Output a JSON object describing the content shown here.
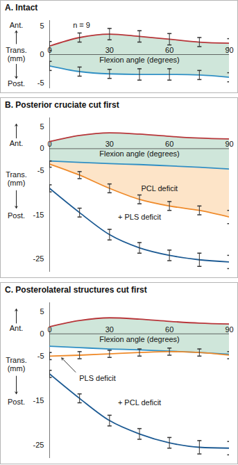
{
  "chart_data": [
    {
      "type": "line",
      "title": "A. Intact",
      "xlabel": "Flexion angle (degrees)",
      "ylabel": "Trans. (mm)",
      "ylabel_positive": "Ant.",
      "ylabel_negative": "Post.",
      "x": [
        0,
        15,
        30,
        45,
        60,
        75,
        90
      ],
      "xlim": [
        0,
        90
      ],
      "xticks": [
        0,
        30,
        60,
        90
      ],
      "ylim": [
        -6,
        6
      ],
      "yticks": [
        5,
        0,
        -5
      ],
      "annotations": [
        "n = 9"
      ],
      "series": [
        {
          "type": "area",
          "color": "#cfe6da",
          "values": [
            1.5,
            3,
            3.6,
            3.2,
            2.7,
            2.2,
            2.0
          ],
          "lower": [
            -2,
            -3,
            -3.4,
            -3.5,
            -3.5,
            -3.6,
            -4
          ]
        },
        {
          "color": "#b8363a",
          "values": [
            1.5,
            3,
            3.6,
            3.2,
            2.7,
            2.2,
            2.0
          ],
          "errors": [
            0.8,
            0.8,
            1,
            1,
            1,
            0.8,
            0.8
          ]
        },
        {
          "color": "#2f8fc4",
          "values": [
            -2,
            -3,
            -3.4,
            -3.5,
            -3.5,
            -3.6,
            -4
          ],
          "errors": [
            0.8,
            0.8,
            0.8,
            1,
            1,
            0.8,
            0.8
          ]
        }
      ]
    },
    {
      "type": "line",
      "title": "B. Posterior cruciate cut first",
      "xlabel": "Flexion angle (degrees)",
      "ylabel": "Trans. (mm)",
      "ylabel_positive": "Ant.",
      "ylabel_negative": "Post.",
      "x": [
        0,
        15,
        30,
        45,
        60,
        75,
        90
      ],
      "xlim": [
        0,
        90
      ],
      "xticks": [
        0,
        30,
        60,
        90
      ],
      "ylim": [
        -28,
        7
      ],
      "yticks": [
        5,
        0,
        -5,
        -15,
        -25
      ],
      "series": [
        {
          "type": "area",
          "color": "#cfe6da",
          "values": [
            1.6,
            3.0,
            3.6,
            3.3,
            2.8,
            2.4,
            2.2
          ],
          "lower": [
            -2.8,
            -3.1,
            -3.4,
            -3.6,
            -3.9,
            -4.2,
            -4.6
          ]
        },
        {
          "type": "area",
          "color": "#fde4c8",
          "values": [
            -2.8,
            -3.1,
            -3.4,
            -3.6,
            -3.9,
            -4.2,
            -4.6
          ],
          "lower": [
            -3.5,
            -6,
            -9,
            -11.5,
            -13,
            -14,
            -15.5
          ]
        },
        {
          "color": "#b8363a",
          "values": [
            1.6,
            3.0,
            3.6,
            3.3,
            2.8,
            2.4,
            2.2
          ]
        },
        {
          "color": "#2f8fc4",
          "values": [
            -2.8,
            -3.1,
            -3.4,
            -3.6,
            -3.9,
            -4.2,
            -4.6
          ]
        },
        {
          "name": "PCL deficit",
          "color": "#ef8a2a",
          "values": [
            -3.5,
            -6,
            -9,
            -11.5,
            -13,
            -14,
            -15.5
          ],
          "errors": [
            0.7,
            0.8,
            1,
            1,
            1,
            1,
            1.5
          ]
        },
        {
          "name": "+ PLS deficit",
          "color": "#1c5a93",
          "values": [
            -9,
            -14.5,
            -19.5,
            -22.5,
            -24.2,
            -25.2,
            -25.7
          ],
          "errors": [
            0.8,
            1,
            1.2,
            1.2,
            1.2,
            1.5,
            1.5
          ]
        }
      ]
    },
    {
      "type": "line",
      "title": "C. Posterolateral structures cut first",
      "xlabel": "Flexion angle (degrees)",
      "ylabel": "Trans. (mm)",
      "ylabel_positive": "Ant.",
      "ylabel_negative": "Post.",
      "x": [
        0,
        15,
        30,
        45,
        60,
        75,
        90
      ],
      "xlim": [
        0,
        90
      ],
      "xticks": [
        0,
        30,
        60,
        90
      ],
      "ylim": [
        -28,
        7
      ],
      "yticks": [
        5,
        0,
        -5,
        -15,
        -25
      ],
      "series": [
        {
          "type": "area",
          "color": "#cfe6da",
          "values": [
            1.6,
            3.0,
            3.6,
            3.3,
            2.8,
            2.4,
            2.2
          ],
          "lower": [
            -2.8,
            -3.1,
            -3.4,
            -3.6,
            -3.9,
            -4.2,
            -4.6
          ]
        },
        {
          "color": "#b8363a",
          "values": [
            1.6,
            3.0,
            3.6,
            3.3,
            2.8,
            2.4,
            2.2
          ]
        },
        {
          "color": "#2f8fc4",
          "values": [
            -2.8,
            -3.1,
            -3.4,
            -3.6,
            -3.9,
            -4.2,
            -4.6
          ]
        },
        {
          "name": "PLS deficit",
          "color": "#ef8a2a",
          "values": [
            -5,
            -4.8,
            -4.5,
            -4.2,
            -4,
            -4.2,
            -4.8
          ],
          "errors": [
            0.8,
            0.8,
            0.8,
            0.8,
            0.8,
            0.8,
            0.8
          ]
        },
        {
          "name": "+ PCL deficit",
          "color": "#1c5a93",
          "values": [
            -9,
            -14.5,
            -19.5,
            -22.5,
            -24.5,
            -25.5,
            -25.7
          ],
          "errors": [
            0.8,
            1,
            1.2,
            1.2,
            1.2,
            1.5,
            1.5
          ]
        }
      ]
    }
  ]
}
